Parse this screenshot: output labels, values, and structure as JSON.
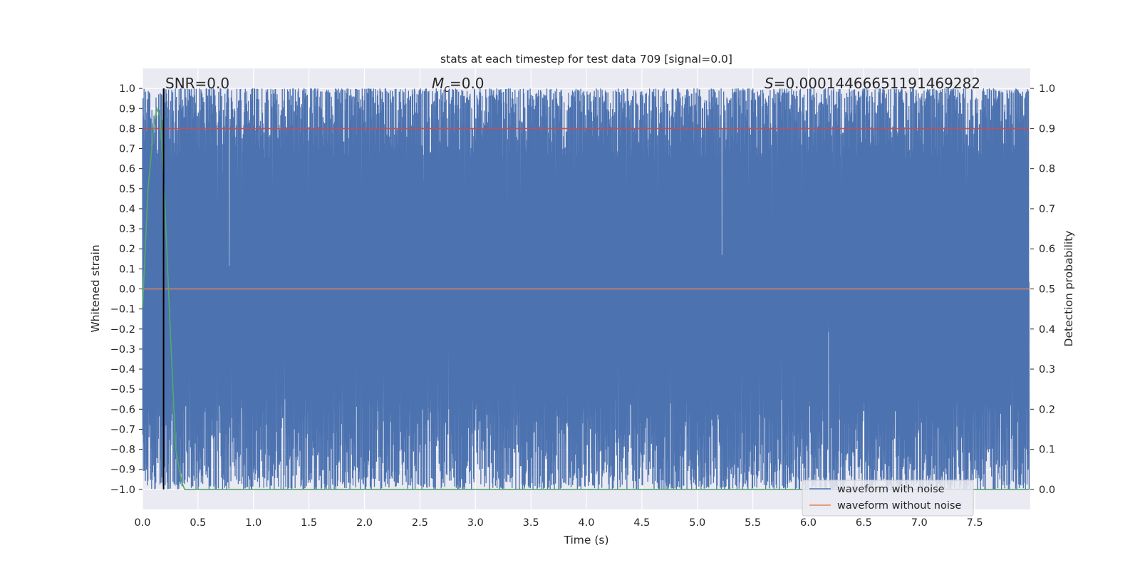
{
  "chart_data": {
    "type": "line",
    "title": "stats at each timestep for test data 709 [signal=0.0]",
    "xlabel": "Time (s)",
    "ylabel": "Whitened strain",
    "ylabel_right": "Detection probability",
    "xlim": [
      0.0,
      8.0
    ],
    "ylim": [
      -1.1,
      1.1
    ],
    "ylim_right": [
      -0.05,
      1.05
    ],
    "x_ticks": [
      "0.0",
      "0.5",
      "1.0",
      "1.5",
      "2.0",
      "2.5",
      "3.0",
      "3.5",
      "4.0",
      "4.5",
      "5.0",
      "5.5",
      "6.0",
      "6.5",
      "7.0",
      "7.5"
    ],
    "y_ticks": [
      "1.0",
      "0.9",
      "0.8",
      "0.7",
      "0.6",
      "0.5",
      "0.4",
      "0.3",
      "0.2",
      "0.1",
      "0.0",
      "−0.1",
      "−0.2",
      "−0.3",
      "−0.4",
      "−0.5",
      "−0.6",
      "−0.7",
      "−0.8",
      "−0.9",
      "−1.0"
    ],
    "y_ticks_right": [
      "1.0",
      "0.9",
      "0.8",
      "0.7",
      "0.6",
      "0.5",
      "0.4",
      "0.3",
      "0.2",
      "0.1",
      "0.0"
    ],
    "grid": true,
    "background": "#eaeaf2",
    "annotations": {
      "snr": "SNR=0.0",
      "mc_symbol": "M",
      "mc_sub": "c",
      "mc_value": "=0.0",
      "s_symbol": "S",
      "s_value": "=0.00014466651191469282"
    },
    "legend": {
      "placement": "lower right",
      "entries": [
        {
          "label": "waveform with noise",
          "color": "#4c72b0"
        },
        {
          "label": "waveform without noise",
          "color": "#dd8452"
        }
      ]
    },
    "series": [
      {
        "name": "waveform with noise",
        "axis": "left",
        "color": "#4c72b0",
        "description_stats": {
          "min": -1.0,
          "max": 1.0
        },
        "note": "dense whitened noise oscillating between -1.0 and 1.0 over 0–7.99 s"
      },
      {
        "name": "waveform without noise",
        "axis": "left",
        "color": "#dd8452",
        "x": [
          0.0,
          7.99
        ],
        "y": [
          0.0,
          0.0
        ]
      },
      {
        "axis": "right",
        "color": "#c44e52",
        "x": [
          0.0,
          7.99
        ],
        "y": [
          0.9,
          0.9
        ]
      },
      {
        "axis": "right",
        "color": "#55a868",
        "x": [
          0.0,
          0.05,
          0.1,
          0.13,
          0.16,
          0.2,
          0.25,
          0.3,
          0.35,
          0.38,
          0.5,
          1.0,
          2.0,
          4.0,
          6.0,
          7.99
        ],
        "y": [
          0.45,
          0.75,
          0.9,
          0.95,
          0.93,
          0.72,
          0.4,
          0.1,
          0.02,
          0.0,
          0.0,
          0.0,
          0.0,
          0.0,
          0.0,
          0.0
        ]
      }
    ],
    "vline": {
      "x": 0.19,
      "color": "#000000",
      "ymin": -1.0,
      "ymax": 1.0
    }
  }
}
